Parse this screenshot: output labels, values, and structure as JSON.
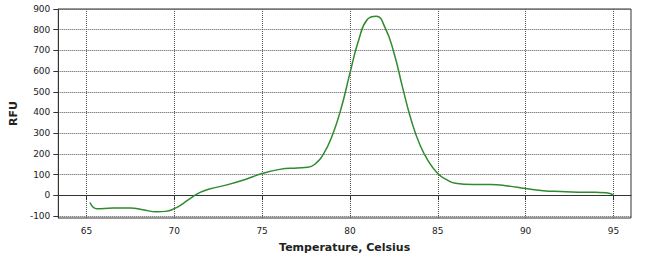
{
  "chart_data": {
    "type": "line",
    "x_label": "Temperature, Celsius",
    "y_label": "RFU",
    "x": [
      65.2,
      65.6,
      66.5,
      67.5,
      68.2,
      69,
      69.5,
      70,
      70.5,
      71,
      71.5,
      72,
      73,
      74,
      75,
      76,
      77,
      77.6,
      78,
      78.5,
      79,
      79.5,
      80,
      80.5,
      81,
      81.5,
      82,
      82.5,
      83,
      83.5,
      84,
      84.5,
      85,
      85.5,
      86,
      87,
      88,
      89,
      90,
      91,
      92,
      93,
      94,
      94.6,
      95
    ],
    "values": [
      -35,
      -65,
      -62,
      -62,
      -70,
      -80,
      -78,
      -65,
      -40,
      -10,
      15,
      30,
      50,
      75,
      105,
      125,
      132,
      135,
      150,
      200,
      290,
      420,
      590,
      750,
      850,
      865,
      810,
      690,
      520,
      360,
      240,
      160,
      105,
      75,
      58,
      52,
      52,
      45,
      32,
      22,
      18,
      15,
      14,
      12,
      2
    ],
    "color": "#2e8b2e",
    "xlim": [
      63.4,
      96
    ],
    "xticks": [
      65,
      70,
      75,
      80,
      85,
      90,
      95
    ],
    "ylim": [
      -110,
      900
    ],
    "yticks": [
      -100,
      0,
      100,
      200,
      300,
      400,
      500,
      600,
      700,
      800,
      900
    ],
    "grid": true
  }
}
